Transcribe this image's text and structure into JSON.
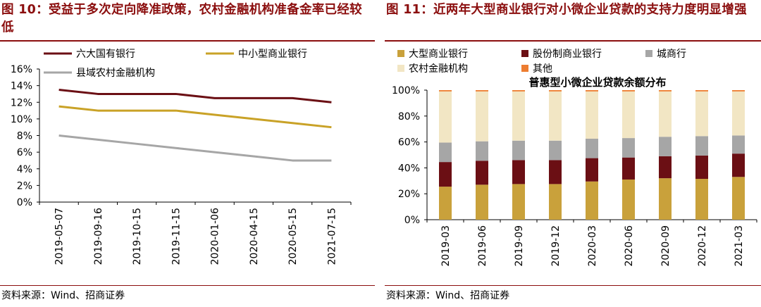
{
  "left": {
    "figure_title": "图 10：受益于多次定向降准政策，农村金融机构准备金率已经较低",
    "source": "资料来源：Wind、招商证券",
    "chart_data": {
      "type": "line",
      "categories": [
        "2019-05-07",
        "2019-09-16",
        "2019-10-15",
        "2019-11-15",
        "2020-01-06",
        "2020-04-15",
        "2020-05-15",
        "2021-07-15"
      ],
      "series": [
        {
          "name": "六大国有银行",
          "color": "#6b0f14",
          "values": [
            13.5,
            13.0,
            13.0,
            13.0,
            12.5,
            12.5,
            12.5,
            12.0
          ]
        },
        {
          "name": "中小型商业银行",
          "color": "#c9a227",
          "values": [
            11.5,
            11.0,
            11.0,
            11.0,
            10.5,
            10.0,
            9.5,
            9.0
          ]
        },
        {
          "name": "县域农村金融机构",
          "color": "#a6a6a6",
          "values": [
            8.0,
            7.5,
            7.0,
            6.5,
            6.0,
            5.5,
            5.0,
            5.0
          ]
        }
      ],
      "ylim": [
        0,
        16
      ],
      "yticks": [
        0,
        2,
        4,
        6,
        8,
        10,
        12,
        14,
        16
      ],
      "ytick_labels": [
        "0%",
        "2%",
        "4%",
        "6%",
        "8%",
        "10%",
        "12%",
        "14%",
        "16%"
      ]
    }
  },
  "right": {
    "figure_title": "图 11：近两年大型商业银行对小微企业贷款的支持力度明显增强",
    "source": "资料来源：Wind、招商证券",
    "chart_data": {
      "type": "bar",
      "stacked": true,
      "title": "普惠型小微企业贷款余额分布",
      "categories": [
        "2019-03",
        "2019-06",
        "2019-09",
        "2019-12",
        "2020-03",
        "2020-06",
        "2020-09",
        "2020-12",
        "2021-03"
      ],
      "series": [
        {
          "name": "大型商业银行",
          "color": "#c9a13b",
          "values": [
            25.5,
            27,
            27.5,
            27.5,
            29.5,
            31,
            32,
            31.5,
            33
          ]
        },
        {
          "name": "股份制商业银行",
          "color": "#6b0f14",
          "values": [
            19,
            18.5,
            18.5,
            18.5,
            18,
            17,
            17,
            18,
            18
          ]
        },
        {
          "name": "城商行",
          "color": "#a6a6a6",
          "values": [
            15,
            15,
            15,
            15,
            15,
            15,
            15,
            15,
            14
          ]
        },
        {
          "name": "农村金融机构",
          "color": "#f2e6c4",
          "values": [
            39.5,
            38.5,
            38,
            38,
            36.5,
            36,
            35,
            34.5,
            34
          ]
        },
        {
          "name": "其他",
          "color": "#ed7d31",
          "values": [
            1,
            1,
            1,
            1,
            1,
            1,
            1,
            1,
            1
          ]
        }
      ],
      "ylim": [
        0,
        100
      ],
      "yticks": [
        0,
        20,
        40,
        60,
        80,
        100
      ],
      "ytick_labels": [
        "0%",
        "20%",
        "40%",
        "60%",
        "80%",
        "100%"
      ]
    }
  }
}
